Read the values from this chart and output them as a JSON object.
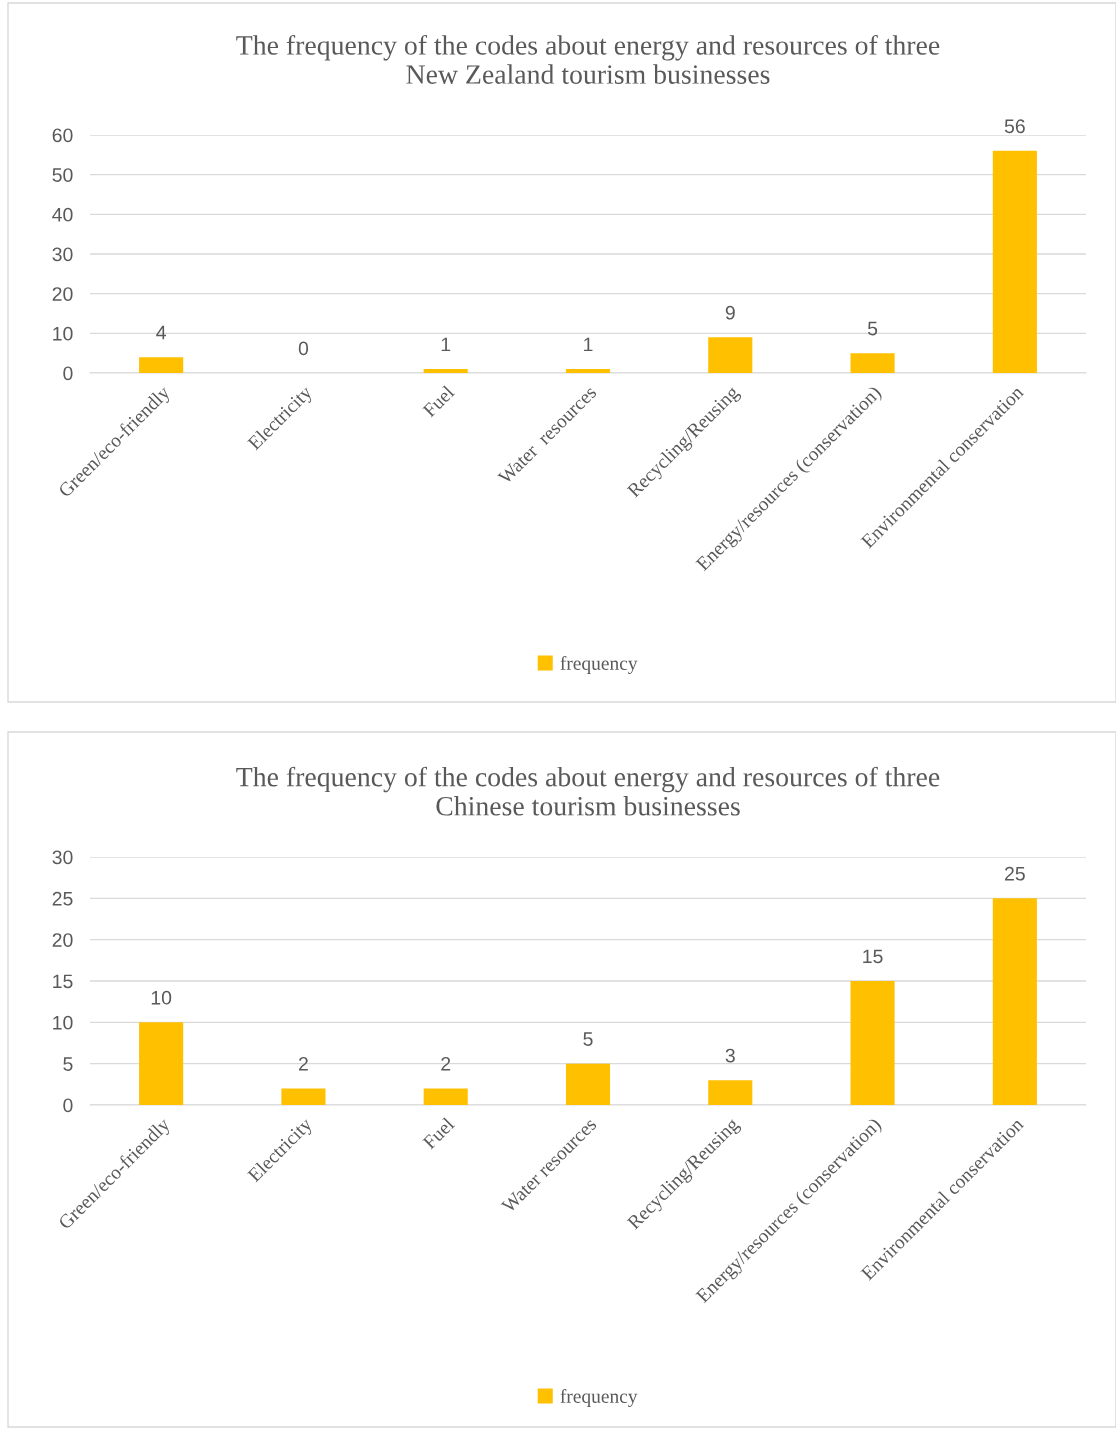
{
  "chart_data": [
    {
      "type": "bar",
      "title": "The frequency of the codes about energy and resources of three\nNew Zealand tourism businesses",
      "categories": [
        "Green/eco-friendly",
        "Electricity",
        "Fuel",
        "Water  resources",
        "Recycling/Reusing",
        "Energy/resources (conservation)",
        "Environmental conservation"
      ],
      "series": [
        {
          "name": "frequency",
          "color": "#ffc000",
          "values": [
            4,
            0,
            1,
            1,
            9,
            5,
            56
          ]
        }
      ],
      "ylim": [
        0,
        60
      ],
      "yticks": [
        0,
        10,
        20,
        30,
        40,
        50,
        60
      ],
      "grid": "y",
      "legend": "bottom",
      "data_labels": true
    },
    {
      "type": "bar",
      "title": "The frequency of the codes about energy and resources of three\nChinese tourism businesses",
      "categories": [
        "Green/eco-friendly",
        "Electricity",
        "Fuel",
        "Water resources",
        "Recycling/Reusing",
        "Energy/resources (conservation)",
        "Environmental conservation"
      ],
      "series": [
        {
          "name": "frequency",
          "color": "#ffc000",
          "values": [
            10,
            2,
            2,
            5,
            3,
            15,
            25
          ]
        }
      ],
      "ylim": [
        0,
        30
      ],
      "yticks": [
        0,
        5,
        10,
        15,
        20,
        25,
        30
      ],
      "grid": "y",
      "legend": "bottom",
      "data_labels": true
    }
  ]
}
